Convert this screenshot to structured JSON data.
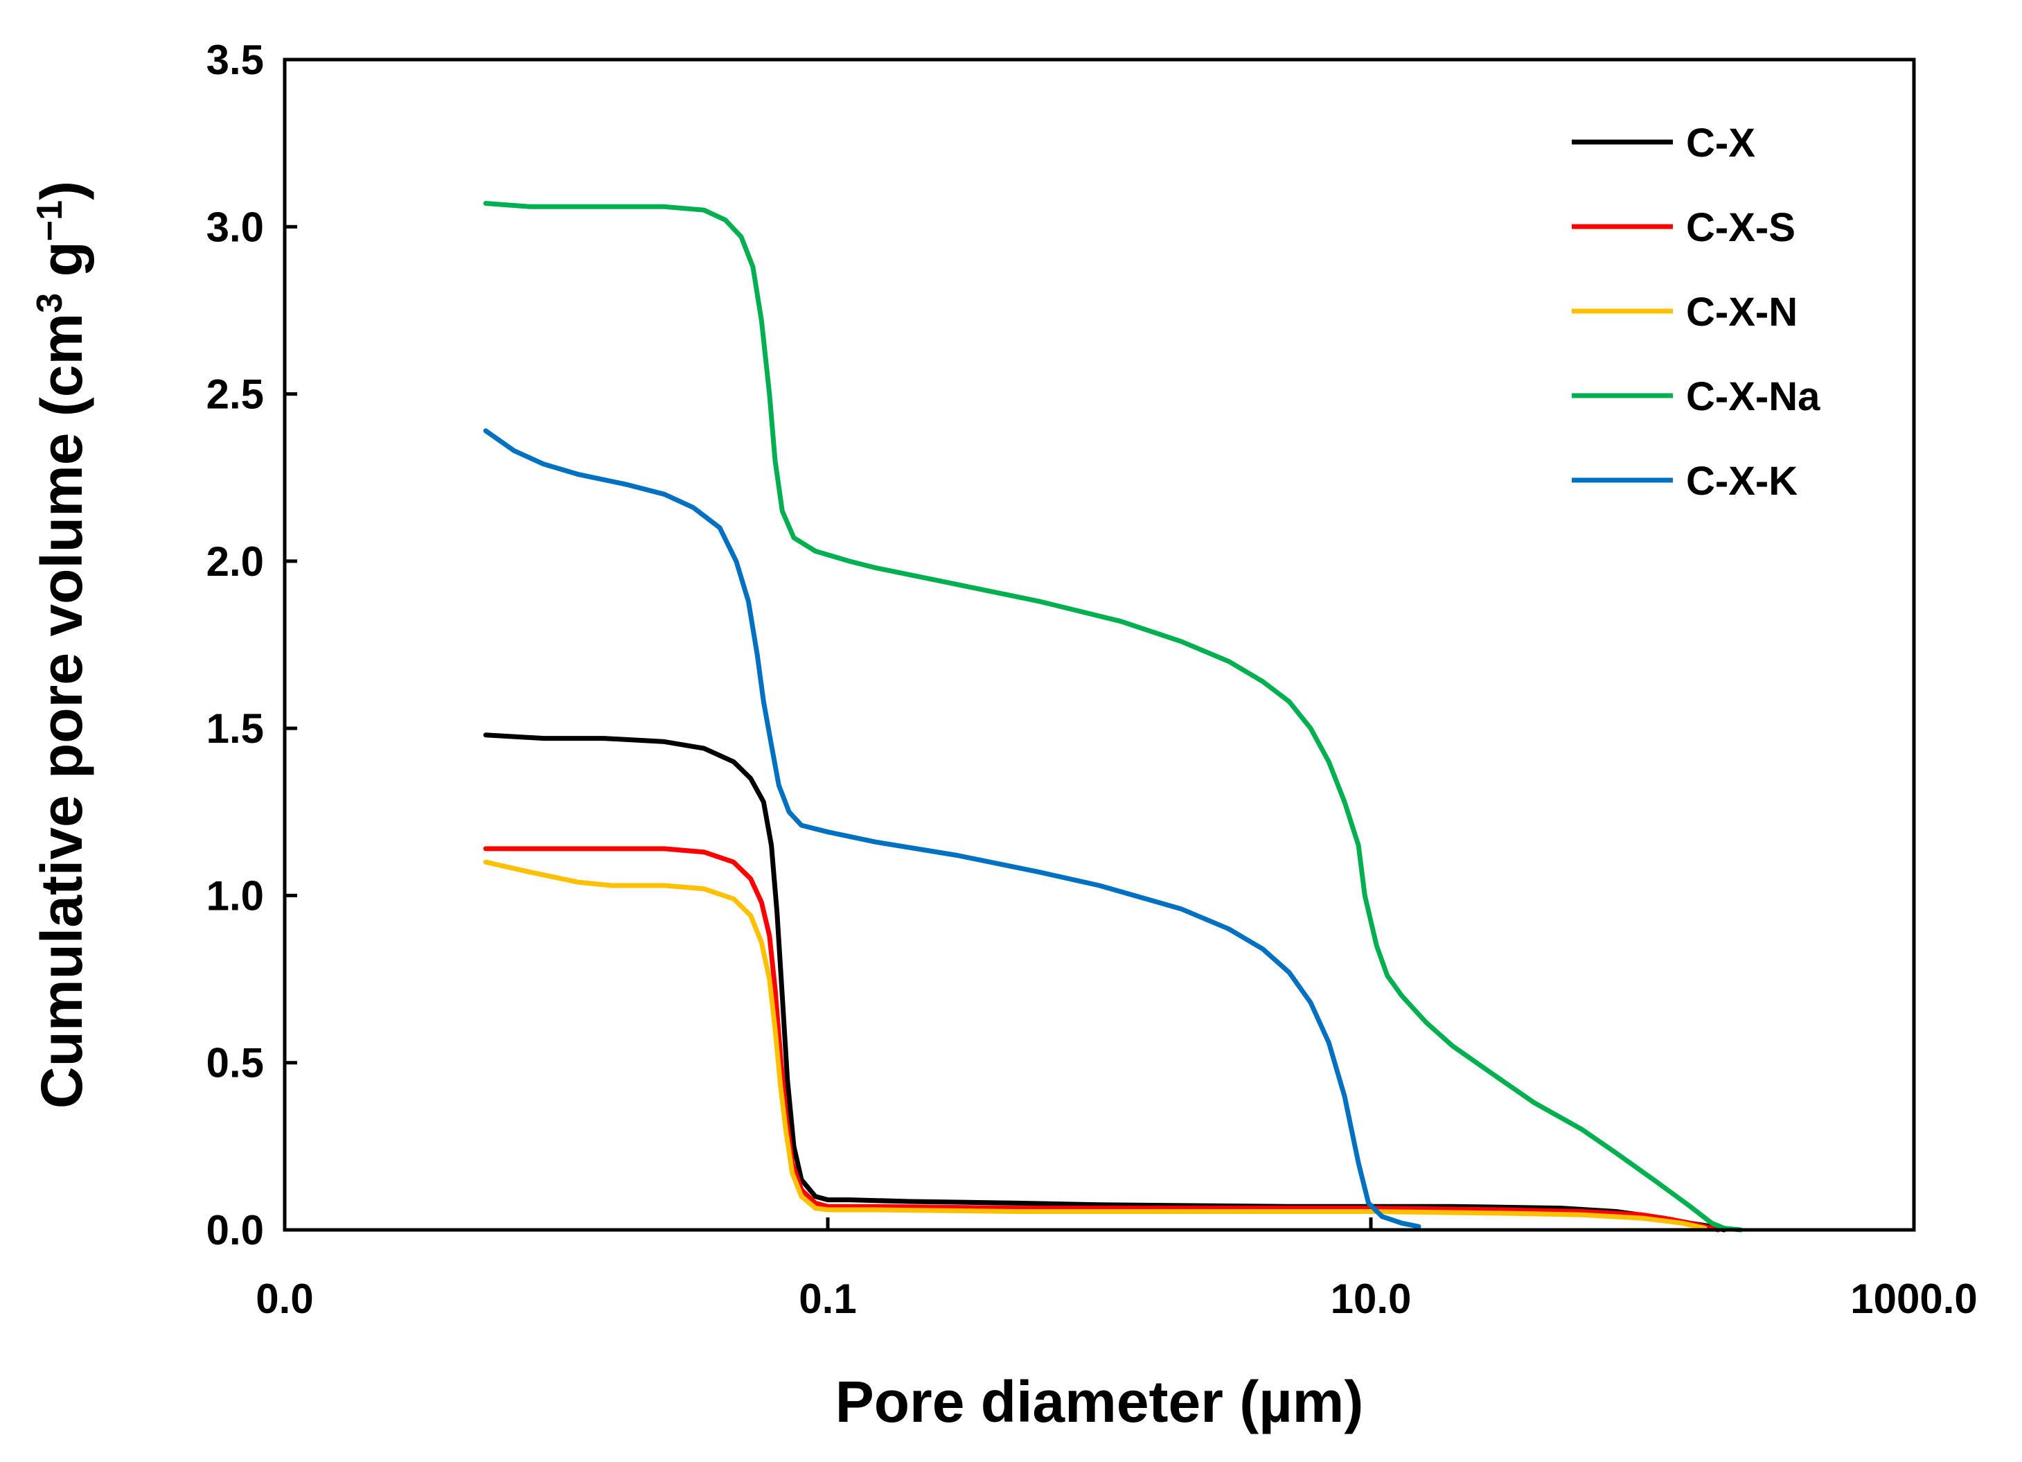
{
  "chart_data": {
    "type": "line",
    "title": "",
    "xlabel": "Pore diameter (µm)",
    "ylabel": "Cumulative pore volume (cm",
    "ylabel_sup1": "3",
    "ylabel_mid": " g",
    "ylabel_sup2": "−1",
    "ylabel_end": ")",
    "xscale": "log",
    "xlim": [
      0.001,
      1000
    ],
    "ylim": [
      0,
      3.5
    ],
    "xticks": [
      0.001,
      0.1,
      10,
      1000
    ],
    "xtick_labels": [
      "0.0",
      "0.1",
      "10.0",
      "1000.0"
    ],
    "yticks": [
      0,
      0.5,
      1,
      1.5,
      2,
      2.5,
      3,
      3.5
    ],
    "ytick_labels": [
      "0.0",
      "0.5",
      "1.0",
      "1.5",
      "2.0",
      "2.5",
      "3.0",
      "3.5"
    ],
    "grid": false,
    "legend_position": "top-right",
    "series": [
      {
        "name": "C-X",
        "color": "#000000",
        "points": [
          [
            0.0055,
            1.48
          ],
          [
            0.009,
            1.47
          ],
          [
            0.015,
            1.47
          ],
          [
            0.025,
            1.46
          ],
          [
            0.035,
            1.44
          ],
          [
            0.045,
            1.4
          ],
          [
            0.052,
            1.35
          ],
          [
            0.058,
            1.28
          ],
          [
            0.062,
            1.15
          ],
          [
            0.065,
            0.95
          ],
          [
            0.068,
            0.7
          ],
          [
            0.071,
            0.45
          ],
          [
            0.075,
            0.25
          ],
          [
            0.08,
            0.15
          ],
          [
            0.09,
            0.1
          ],
          [
            0.1,
            0.09
          ],
          [
            0.12,
            0.09
          ],
          [
            0.2,
            0.085
          ],
          [
            0.5,
            0.08
          ],
          [
            1,
            0.075
          ],
          [
            5,
            0.07
          ],
          [
            20,
            0.07
          ],
          [
            50,
            0.065
          ],
          [
            80,
            0.055
          ],
          [
            120,
            0.035
          ],
          [
            150,
            0.02
          ],
          [
            180,
            0.01
          ],
          [
            200,
            0.0
          ]
        ]
      },
      {
        "name": "C-X-S",
        "color": "#ff0000",
        "points": [
          [
            0.0055,
            1.14
          ],
          [
            0.009,
            1.14
          ],
          [
            0.015,
            1.14
          ],
          [
            0.025,
            1.14
          ],
          [
            0.035,
            1.13
          ],
          [
            0.045,
            1.1
          ],
          [
            0.052,
            1.05
          ],
          [
            0.057,
            0.98
          ],
          [
            0.061,
            0.88
          ],
          [
            0.064,
            0.72
          ],
          [
            0.067,
            0.52
          ],
          [
            0.07,
            0.35
          ],
          [
            0.074,
            0.2
          ],
          [
            0.08,
            0.12
          ],
          [
            0.09,
            0.08
          ],
          [
            0.1,
            0.07
          ],
          [
            0.15,
            0.07
          ],
          [
            0.5,
            0.065
          ],
          [
            2,
            0.065
          ],
          [
            10,
            0.065
          ],
          [
            30,
            0.06
          ],
          [
            60,
            0.055
          ],
          [
            100,
            0.045
          ],
          [
            130,
            0.03
          ],
          [
            160,
            0.015
          ],
          [
            190,
            0.0
          ]
        ]
      },
      {
        "name": "C-X-N",
        "color": "#ffc000",
        "points": [
          [
            0.0055,
            1.1
          ],
          [
            0.008,
            1.07
          ],
          [
            0.012,
            1.04
          ],
          [
            0.016,
            1.03
          ],
          [
            0.025,
            1.03
          ],
          [
            0.035,
            1.02
          ],
          [
            0.045,
            0.99
          ],
          [
            0.052,
            0.94
          ],
          [
            0.057,
            0.86
          ],
          [
            0.061,
            0.75
          ],
          [
            0.064,
            0.6
          ],
          [
            0.067,
            0.43
          ],
          [
            0.07,
            0.3
          ],
          [
            0.074,
            0.17
          ],
          [
            0.08,
            0.1
          ],
          [
            0.09,
            0.065
          ],
          [
            0.1,
            0.06
          ],
          [
            0.15,
            0.06
          ],
          [
            0.5,
            0.055
          ],
          [
            2,
            0.055
          ],
          [
            10,
            0.055
          ],
          [
            30,
            0.05
          ],
          [
            60,
            0.045
          ],
          [
            100,
            0.035
          ],
          [
            140,
            0.02
          ],
          [
            170,
            0.005
          ]
        ]
      },
      {
        "name": "C-X-Na",
        "color": "#00b050",
        "points": [
          [
            0.0055,
            3.07
          ],
          [
            0.008,
            3.06
          ],
          [
            0.015,
            3.06
          ],
          [
            0.025,
            3.06
          ],
          [
            0.035,
            3.05
          ],
          [
            0.042,
            3.02
          ],
          [
            0.048,
            2.97
          ],
          [
            0.053,
            2.88
          ],
          [
            0.057,
            2.72
          ],
          [
            0.061,
            2.5
          ],
          [
            0.064,
            2.3
          ],
          [
            0.068,
            2.15
          ],
          [
            0.075,
            2.07
          ],
          [
            0.09,
            2.03
          ],
          [
            0.12,
            2.0
          ],
          [
            0.15,
            1.98
          ],
          [
            0.3,
            1.93
          ],
          [
            0.6,
            1.88
          ],
          [
            1.2,
            1.82
          ],
          [
            2,
            1.76
          ],
          [
            3,
            1.7
          ],
          [
            4,
            1.64
          ],
          [
            5,
            1.58
          ],
          [
            6,
            1.5
          ],
          [
            7,
            1.4
          ],
          [
            8,
            1.28
          ],
          [
            9,
            1.15
          ],
          [
            9.5,
            1.0
          ],
          [
            10.5,
            0.85
          ],
          [
            11.5,
            0.76
          ],
          [
            13,
            0.7
          ],
          [
            16,
            0.62
          ],
          [
            20,
            0.55
          ],
          [
            30,
            0.45
          ],
          [
            40,
            0.38
          ],
          [
            60,
            0.3
          ],
          [
            80,
            0.23
          ],
          [
            110,
            0.15
          ],
          [
            150,
            0.07
          ],
          [
            180,
            0.02
          ],
          [
            200,
            0.005
          ],
          [
            230,
            0.0
          ]
        ]
      },
      {
        "name": "C-X-K",
        "color": "#0070c0",
        "points": [
          [
            0.0055,
            2.39
          ],
          [
            0.007,
            2.33
          ],
          [
            0.009,
            2.29
          ],
          [
            0.012,
            2.26
          ],
          [
            0.018,
            2.23
          ],
          [
            0.025,
            2.2
          ],
          [
            0.032,
            2.16
          ],
          [
            0.04,
            2.1
          ],
          [
            0.046,
            2.0
          ],
          [
            0.051,
            1.88
          ],
          [
            0.055,
            1.72
          ],
          [
            0.058,
            1.58
          ],
          [
            0.062,
            1.45
          ],
          [
            0.066,
            1.33
          ],
          [
            0.072,
            1.25
          ],
          [
            0.08,
            1.21
          ],
          [
            0.1,
            1.19
          ],
          [
            0.15,
            1.16
          ],
          [
            0.3,
            1.12
          ],
          [
            0.6,
            1.07
          ],
          [
            1,
            1.03
          ],
          [
            2,
            0.96
          ],
          [
            3,
            0.9
          ],
          [
            4,
            0.84
          ],
          [
            5,
            0.77
          ],
          [
            6,
            0.68
          ],
          [
            7,
            0.56
          ],
          [
            8,
            0.4
          ],
          [
            9,
            0.2
          ],
          [
            9.8,
            0.08
          ],
          [
            11,
            0.04
          ],
          [
            13,
            0.02
          ],
          [
            15,
            0.01
          ]
        ]
      }
    ]
  }
}
